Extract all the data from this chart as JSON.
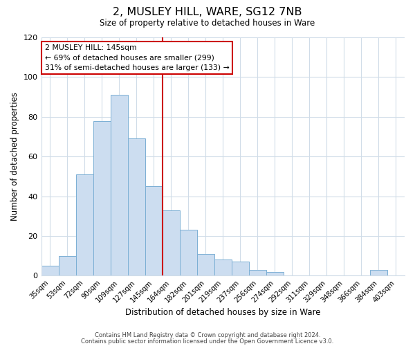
{
  "title": "2, MUSLEY HILL, WARE, SG12 7NB",
  "subtitle": "Size of property relative to detached houses in Ware",
  "xlabel": "Distribution of detached houses by size in Ware",
  "ylabel": "Number of detached properties",
  "bar_labels": [
    "35sqm",
    "53sqm",
    "72sqm",
    "90sqm",
    "109sqm",
    "127sqm",
    "145sqm",
    "164sqm",
    "182sqm",
    "201sqm",
    "219sqm",
    "237sqm",
    "256sqm",
    "274sqm",
    "292sqm",
    "311sqm",
    "329sqm",
    "348sqm",
    "366sqm",
    "384sqm",
    "403sqm"
  ],
  "bar_values": [
    5,
    10,
    51,
    78,
    91,
    69,
    45,
    33,
    23,
    11,
    8,
    7,
    3,
    2,
    0,
    0,
    0,
    0,
    0,
    3,
    0
  ],
  "bar_color": "#ccddf0",
  "bar_edge_color": "#7bafd4",
  "highlight_index": 6,
  "highlight_line_color": "#cc0000",
  "ylim": [
    0,
    120
  ],
  "yticks": [
    0,
    20,
    40,
    60,
    80,
    100,
    120
  ],
  "annotation_title": "2 MUSLEY HILL: 145sqm",
  "annotation_line1": "← 69% of detached houses are smaller (299)",
  "annotation_line2": "31% of semi-detached houses are larger (133) →",
  "annotation_box_color": "#ffffff",
  "annotation_box_edge": "#cc0000",
  "footer_line1": "Contains HM Land Registry data © Crown copyright and database right 2024.",
  "footer_line2": "Contains public sector information licensed under the Open Government Licence v3.0.",
  "background_color": "#ffffff",
  "grid_color": "#d0dce8"
}
